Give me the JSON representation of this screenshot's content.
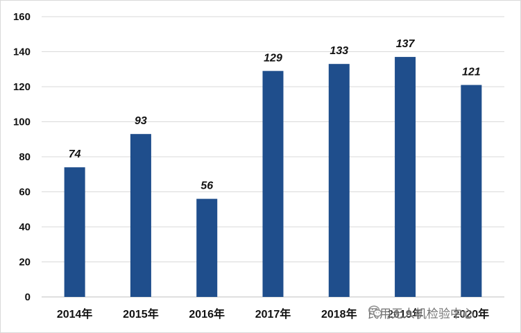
{
  "chart_data": {
    "type": "bar",
    "categories": [
      "2014年",
      "2015年",
      "2016年",
      "2017年",
      "2018年",
      "2019年",
      "2020年"
    ],
    "values": [
      74,
      93,
      56,
      129,
      133,
      137,
      121
    ],
    "title": "",
    "xlabel": "",
    "ylabel": "",
    "ylim": [
      0,
      160
    ],
    "yticks": [
      0,
      20,
      40,
      60,
      80,
      100,
      120,
      140,
      160
    ],
    "grid": true,
    "bar_color": "#1f4e8c",
    "data_labels": true
  },
  "watermark": {
    "text": "民用无人机检验中心",
    "icon": "wechat-icon"
  }
}
